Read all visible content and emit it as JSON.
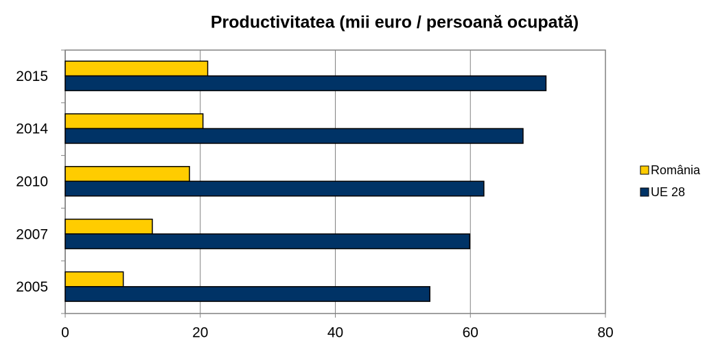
{
  "chart_data": {
    "type": "bar",
    "orientation": "horizontal",
    "title": "Productivitatea (mii euro / persoană ocupată)",
    "categories": [
      "2005",
      "2007",
      "2010",
      "2014",
      "2015"
    ],
    "series": [
      {
        "name": "România",
        "color": "#FFCC00",
        "values": [
          8.6,
          12.9,
          18.4,
          20.4,
          21.1
        ]
      },
      {
        "name": "UE 28",
        "color": "#003366",
        "values": [
          54.0,
          59.9,
          62.0,
          67.8,
          71.2
        ]
      }
    ],
    "xlim": [
      0,
      80
    ],
    "xticks": [
      0,
      20,
      40,
      60,
      80
    ],
    "grid": true,
    "legend": "right"
  }
}
